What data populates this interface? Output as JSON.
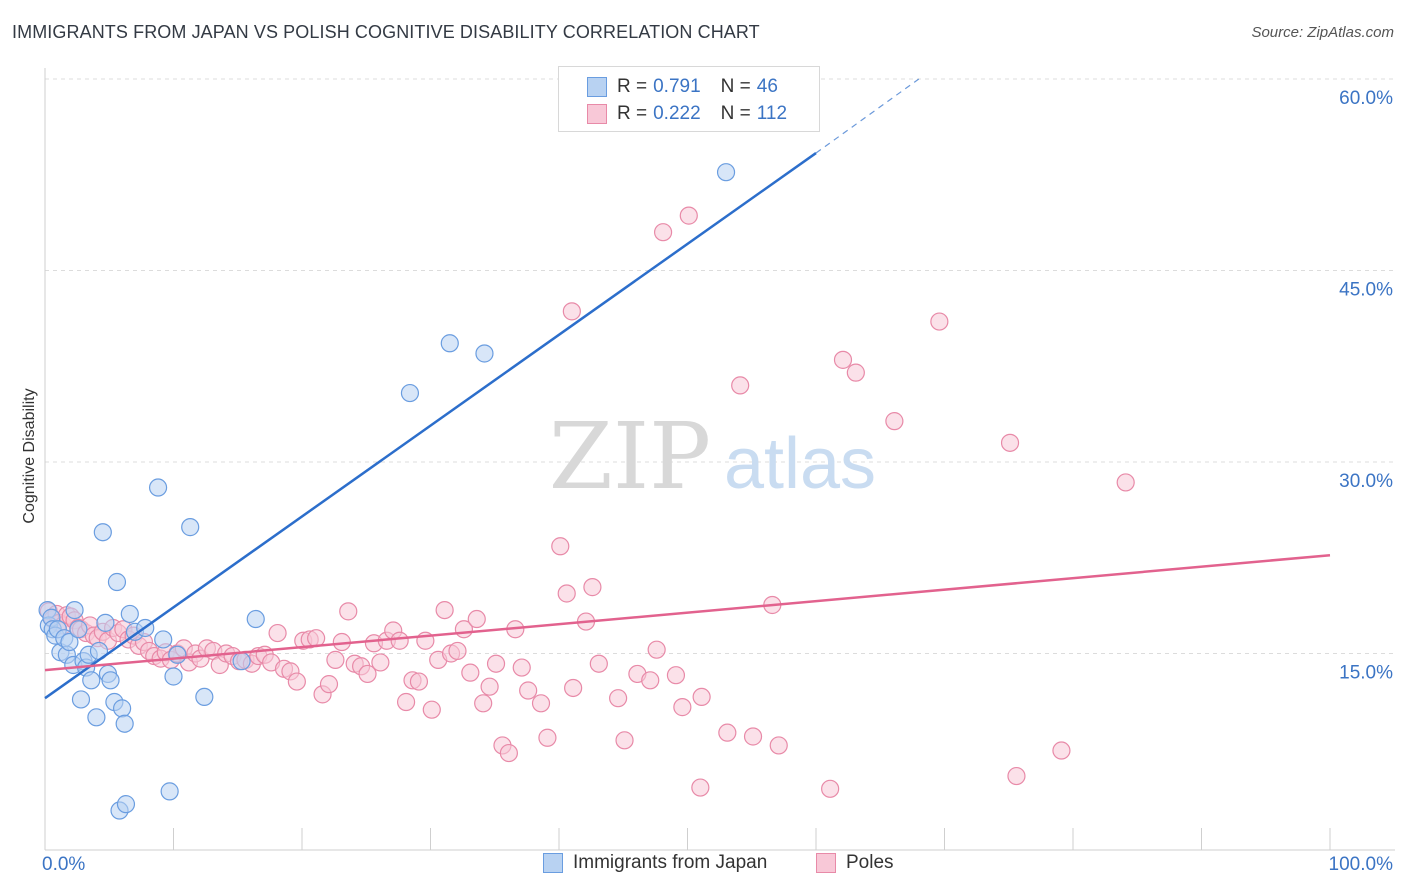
{
  "header": {
    "title": "IMMIGRANTS FROM JAPAN VS POLISH COGNITIVE DISABILITY CORRELATION CHART",
    "source": "Source: ZipAtlas.com"
  },
  "watermark": {
    "zip": "ZIP",
    "atlas": "atlas"
  },
  "legend": {
    "japan": {
      "r_label": "R =",
      "r_value": "0.791",
      "n_label": "N =",
      "n_value": "46"
    },
    "poles": {
      "r_label": "R =",
      "r_value": "0.222",
      "n_label": "N =",
      "n_value": "112"
    }
  },
  "bottom_legend": {
    "japan": "Immigrants from Japan",
    "poles": "Poles"
  },
  "colors": {
    "japan_fill": "#b8d2f2",
    "japan_stroke": "#6a9de0",
    "japan_line": "#2c6ecb",
    "poles_fill": "#f8c8d7",
    "poles_stroke": "#e88aa8",
    "poles_line": "#e2628e",
    "grid": "#dcdcdc",
    "tick_label": "#3b74c4"
  },
  "chart_data": {
    "type": "scatter",
    "title": "IMMIGRANTS FROM JAPAN VS POLISH COGNITIVE DISABILITY CORRELATION CHART",
    "xlabel": "",
    "ylabel": "Cognitive Disability",
    "xlim": [
      0,
      100
    ],
    "ylim": [
      0,
      62
    ],
    "x_tick_labels": [
      "0.0%",
      "100.0%"
    ],
    "y_ticks": [
      15,
      30,
      45,
      60
    ],
    "y_tick_labels": [
      "15.0%",
      "30.0%",
      "45.0%",
      "60.0%"
    ],
    "grid": true,
    "legend_position": "top-center",
    "series": [
      {
        "name": "Immigrants from Japan",
        "r": 0.791,
        "n": 46,
        "trend": {
          "x": [
            0,
            60
          ],
          "y": [
            11.5,
            54.2
          ],
          "dashed_to": [
            68,
            60
          ]
        },
        "points": [
          [
            0.2,
            18.4
          ],
          [
            0.3,
            17.2
          ],
          [
            0.5,
            17.8
          ],
          [
            0.6,
            16.9
          ],
          [
            0.8,
            16.4
          ],
          [
            1.0,
            16.9
          ],
          [
            1.2,
            15.1
          ],
          [
            1.5,
            16.2
          ],
          [
            1.7,
            14.9
          ],
          [
            1.9,
            15.9
          ],
          [
            2.2,
            14.1
          ],
          [
            2.3,
            18.4
          ],
          [
            2.6,
            16.9
          ],
          [
            2.8,
            11.4
          ],
          [
            3.0,
            14.4
          ],
          [
            3.2,
            13.9
          ],
          [
            3.4,
            14.9
          ],
          [
            3.6,
            12.9
          ],
          [
            4.0,
            10.0
          ],
          [
            4.2,
            15.2
          ],
          [
            4.5,
            24.5
          ],
          [
            4.7,
            17.4
          ],
          [
            4.9,
            13.4
          ],
          [
            5.1,
            12.9
          ],
          [
            5.4,
            11.2
          ],
          [
            5.6,
            20.6
          ],
          [
            5.8,
            2.7
          ],
          [
            6.0,
            10.7
          ],
          [
            6.2,
            9.5
          ],
          [
            6.3,
            3.2
          ],
          [
            6.6,
            18.1
          ],
          [
            7.0,
            16.7
          ],
          [
            7.8,
            17.0
          ],
          [
            8.8,
            28.0
          ],
          [
            9.2,
            16.1
          ],
          [
            9.7,
            4.2
          ],
          [
            10.0,
            13.2
          ],
          [
            10.3,
            14.9
          ],
          [
            11.3,
            24.9
          ],
          [
            12.4,
            11.6
          ],
          [
            15.3,
            14.4
          ],
          [
            16.4,
            17.7
          ],
          [
            28.4,
            35.4
          ],
          [
            31.5,
            39.3
          ],
          [
            34.2,
            38.5
          ],
          [
            53.0,
            52.7
          ]
        ]
      },
      {
        "name": "Poles",
        "r": 0.222,
        "n": 112,
        "trend": {
          "x": [
            0,
            100
          ],
          "y": [
            13.7,
            22.7
          ]
        },
        "points": [
          [
            0.3,
            18.3
          ],
          [
            0.6,
            17.7
          ],
          [
            0.9,
            18.1
          ],
          [
            1.1,
            17.4
          ],
          [
            1.4,
            17.2
          ],
          [
            1.7,
            18.0
          ],
          [
            2.0,
            17.9
          ],
          [
            2.3,
            17.6
          ],
          [
            2.6,
            17.0
          ],
          [
            2.8,
            16.9
          ],
          [
            3.2,
            16.6
          ],
          [
            3.5,
            17.2
          ],
          [
            3.8,
            16.4
          ],
          [
            4.1,
            16.2
          ],
          [
            4.5,
            16.7
          ],
          [
            4.9,
            16.0
          ],
          [
            5.3,
            17.0
          ],
          [
            5.7,
            16.6
          ],
          [
            6.1,
            16.9
          ],
          [
            6.5,
            16.1
          ],
          [
            6.9,
            16.4
          ],
          [
            7.3,
            15.6
          ],
          [
            7.7,
            15.9
          ],
          [
            8.1,
            15.2
          ],
          [
            8.5,
            14.8
          ],
          [
            9.0,
            14.6
          ],
          [
            9.4,
            15.1
          ],
          [
            9.8,
            14.5
          ],
          [
            10.3,
            15.0
          ],
          [
            10.8,
            15.4
          ],
          [
            11.2,
            14.3
          ],
          [
            11.7,
            15.0
          ],
          [
            12.1,
            14.6
          ],
          [
            12.6,
            15.4
          ],
          [
            13.1,
            15.2
          ],
          [
            13.6,
            14.1
          ],
          [
            14.1,
            15.0
          ],
          [
            14.6,
            14.8
          ],
          [
            15.1,
            14.4
          ],
          [
            15.6,
            14.5
          ],
          [
            16.1,
            14.2
          ],
          [
            16.6,
            14.8
          ],
          [
            17.1,
            14.9
          ],
          [
            17.6,
            14.3
          ],
          [
            18.1,
            16.6
          ],
          [
            18.6,
            13.8
          ],
          [
            19.1,
            13.6
          ],
          [
            19.6,
            12.8
          ],
          [
            20.1,
            16.0
          ],
          [
            20.6,
            16.1
          ],
          [
            21.1,
            16.2
          ],
          [
            21.6,
            11.8
          ],
          [
            22.1,
            12.6
          ],
          [
            22.6,
            14.5
          ],
          [
            23.1,
            15.9
          ],
          [
            23.6,
            18.3
          ],
          [
            24.1,
            14.2
          ],
          [
            24.6,
            14.0
          ],
          [
            25.1,
            13.4
          ],
          [
            25.6,
            15.8
          ],
          [
            26.1,
            14.3
          ],
          [
            26.6,
            16.0
          ],
          [
            27.1,
            16.8
          ],
          [
            27.6,
            16.0
          ],
          [
            28.1,
            11.2
          ],
          [
            28.6,
            12.9
          ],
          [
            29.1,
            12.8
          ],
          [
            29.6,
            16.0
          ],
          [
            30.1,
            10.6
          ],
          [
            30.6,
            14.5
          ],
          [
            31.1,
            18.4
          ],
          [
            31.6,
            15.0
          ],
          [
            32.1,
            15.2
          ],
          [
            32.6,
            16.9
          ],
          [
            33.1,
            13.5
          ],
          [
            33.6,
            17.7
          ],
          [
            34.1,
            11.1
          ],
          [
            34.6,
            12.4
          ],
          [
            35.1,
            14.2
          ],
          [
            35.6,
            7.8
          ],
          [
            36.1,
            7.2
          ],
          [
            36.6,
            16.9
          ],
          [
            37.1,
            13.9
          ],
          [
            37.6,
            12.1
          ],
          [
            38.6,
            11.1
          ],
          [
            39.1,
            8.4
          ],
          [
            40.1,
            23.4
          ],
          [
            40.6,
            19.7
          ],
          [
            41.1,
            12.3
          ],
          [
            42.1,
            17.5
          ],
          [
            42.6,
            20.2
          ],
          [
            43.1,
            14.2
          ],
          [
            44.6,
            11.5
          ],
          [
            45.1,
            8.2
          ],
          [
            46.1,
            13.4
          ],
          [
            47.1,
            12.9
          ],
          [
            47.6,
            15.3
          ],
          [
            48.1,
            48.0
          ],
          [
            49.1,
            13.3
          ],
          [
            49.6,
            10.8
          ],
          [
            50.1,
            49.3
          ],
          [
            51.1,
            11.6
          ],
          [
            53.1,
            8.8
          ],
          [
            54.1,
            36.0
          ],
          [
            55.1,
            8.5
          ],
          [
            56.6,
            18.8
          ],
          [
            57.1,
            7.8
          ],
          [
            61.1,
            4.4
          ],
          [
            62.1,
            38.0
          ],
          [
            63.1,
            37.0
          ],
          [
            66.1,
            33.2
          ],
          [
            69.6,
            41.0
          ],
          [
            75.1,
            31.5
          ],
          [
            75.6,
            5.4
          ],
          [
            79.1,
            7.4
          ],
          [
            84.1,
            28.4
          ],
          [
            41.0,
            41.8
          ],
          [
            51.0,
            4.5
          ]
        ]
      }
    ]
  }
}
